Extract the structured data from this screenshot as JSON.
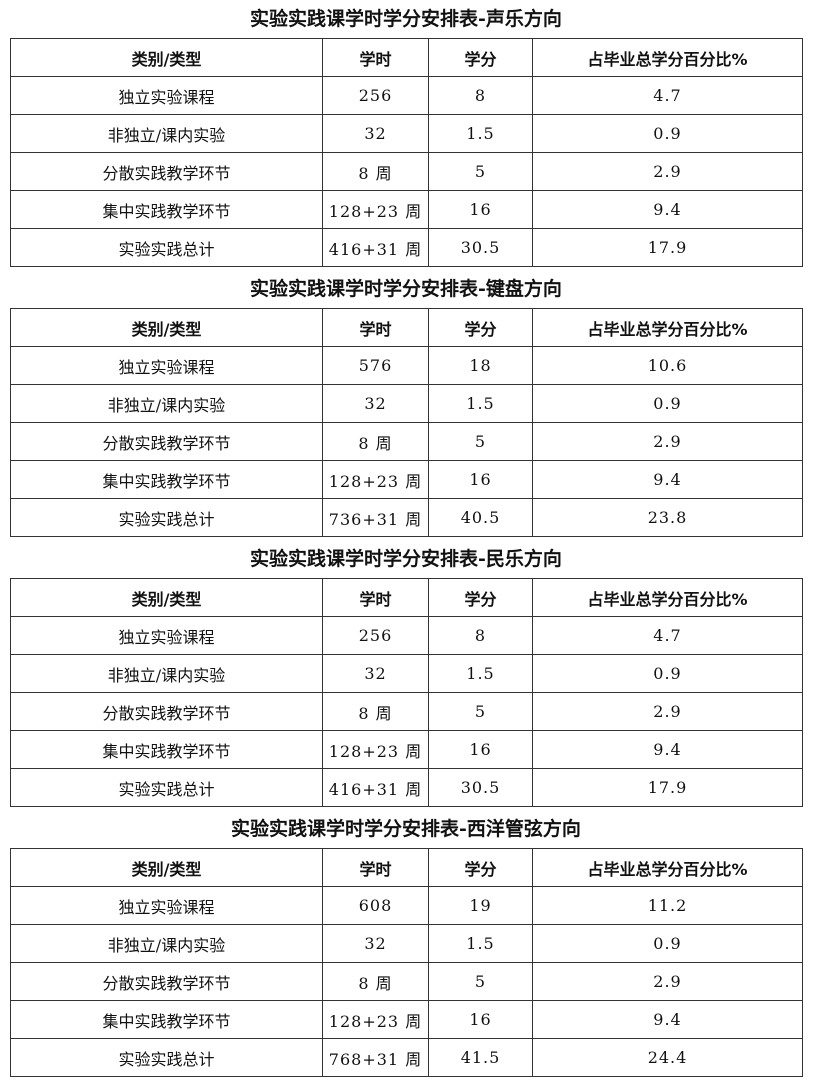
{
  "headers": [
    "类别/类型",
    "学时",
    "学分",
    "占毕业总学分百分比%"
  ],
  "tables": [
    {
      "title": "实验实践课学时学分安排表-声乐方向",
      "rows": [
        [
          "独立实验课程",
          "256",
          "8",
          "4.7"
        ],
        [
          "非独立/课内实验",
          "32",
          "1.5",
          "0.9"
        ],
        [
          "分散实践教学环节",
          "8 周",
          "5",
          "2.9"
        ],
        [
          "集中实践教学环节",
          "128+23 周",
          "16",
          "9.4"
        ],
        [
          "实验实践总计",
          "416+31 周",
          "30.5",
          "17.9"
        ]
      ]
    },
    {
      "title": "实验实践课学时学分安排表-键盘方向",
      "rows": [
        [
          "独立实验课程",
          "576",
          "18",
          "10.6"
        ],
        [
          "非独立/课内实验",
          "32",
          "1.5",
          "0.9"
        ],
        [
          "分散实践教学环节",
          "8 周",
          "5",
          "2.9"
        ],
        [
          "集中实践教学环节",
          "128+23 周",
          "16",
          "9.4"
        ],
        [
          "实验实践总计",
          "736+31 周",
          "40.5",
          "23.8"
        ]
      ]
    },
    {
      "title": "实验实践课学时学分安排表-民乐方向",
      "rows": [
        [
          "独立实验课程",
          "256",
          "8",
          "4.7"
        ],
        [
          "非独立/课内实验",
          "32",
          "1.5",
          "0.9"
        ],
        [
          "分散实践教学环节",
          "8 周",
          "5",
          "2.9"
        ],
        [
          "集中实践教学环节",
          "128+23 周",
          "16",
          "9.4"
        ],
        [
          "实验实践总计",
          "416+31 周",
          "30.5",
          "17.9"
        ]
      ]
    },
    {
      "title": "实验实践课学时学分安排表-西洋管弦方向",
      "rows": [
        [
          "独立实验课程",
          "608",
          "19",
          "11.2"
        ],
        [
          "非独立/课内实验",
          "32",
          "1.5",
          "0.9"
        ],
        [
          "分散实践教学环节",
          "8 周",
          "5",
          "2.9"
        ],
        [
          "集中实践教学环节",
          "128+23 周",
          "16",
          "9.4"
        ],
        [
          "实验实践总计",
          "768+31 周",
          "41.5",
          "24.4"
        ]
      ]
    }
  ]
}
